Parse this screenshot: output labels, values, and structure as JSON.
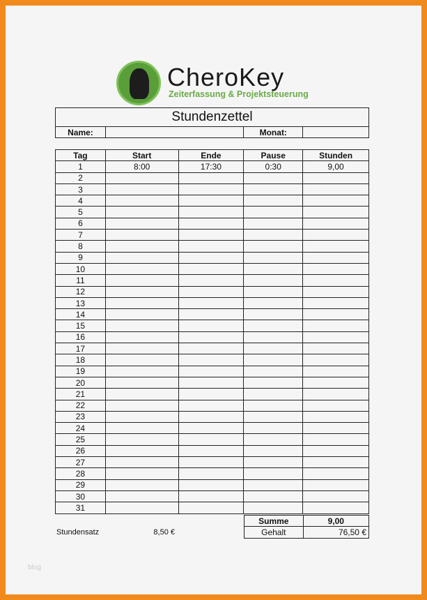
{
  "logo": {
    "brand": "CheroKey",
    "tagline": "Zeiterfassung & Projektsteuerung",
    "color": "#6aaa48"
  },
  "header": {
    "title": "Stundenzettel",
    "name_label": "Name:",
    "name_value": "",
    "month_label": "Monat:",
    "month_value": ""
  },
  "table": {
    "columns": [
      "Tag",
      "Start",
      "Ende",
      "Pause",
      "Stunden"
    ],
    "rows": [
      [
        "1",
        "8:00",
        "17:30",
        "0:30",
        "9,00"
      ],
      [
        "2",
        "",
        "",
        "",
        ""
      ],
      [
        "3",
        "",
        "",
        "",
        ""
      ],
      [
        "4",
        "",
        "",
        "",
        ""
      ],
      [
        "5",
        "",
        "",
        "",
        ""
      ],
      [
        "6",
        "",
        "",
        "",
        ""
      ],
      [
        "7",
        "",
        "",
        "",
        ""
      ],
      [
        "8",
        "",
        "",
        "",
        ""
      ],
      [
        "9",
        "",
        "",
        "",
        ""
      ],
      [
        "10",
        "",
        "",
        "",
        ""
      ],
      [
        "11",
        "",
        "",
        "",
        ""
      ],
      [
        "12",
        "",
        "",
        "",
        ""
      ],
      [
        "13",
        "",
        "",
        "",
        ""
      ],
      [
        "14",
        "",
        "",
        "",
        ""
      ],
      [
        "15",
        "",
        "",
        "",
        ""
      ],
      [
        "16",
        "",
        "",
        "",
        ""
      ],
      [
        "17",
        "",
        "",
        "",
        ""
      ],
      [
        "18",
        "",
        "",
        "",
        ""
      ],
      [
        "19",
        "",
        "",
        "",
        ""
      ],
      [
        "20",
        "",
        "",
        "",
        ""
      ],
      [
        "21",
        "",
        "",
        "",
        ""
      ],
      [
        "22",
        "",
        "",
        "",
        ""
      ],
      [
        "23",
        "",
        "",
        "",
        ""
      ],
      [
        "24",
        "",
        "",
        "",
        ""
      ],
      [
        "25",
        "",
        "",
        "",
        ""
      ],
      [
        "26",
        "",
        "",
        "",
        ""
      ],
      [
        "27",
        "",
        "",
        "",
        ""
      ],
      [
        "28",
        "",
        "",
        "",
        ""
      ],
      [
        "29",
        "",
        "",
        "",
        ""
      ],
      [
        "30",
        "",
        "",
        "",
        ""
      ],
      [
        "31",
        "",
        "",
        "",
        ""
      ]
    ]
  },
  "summary": {
    "sum_label": "Summe",
    "sum_value": "9,00",
    "salary_label": "Gehalt",
    "salary_value": "76,50 €",
    "rate_label": "Stundensatz",
    "rate_value": "8,50 €"
  },
  "watermark": "blog"
}
